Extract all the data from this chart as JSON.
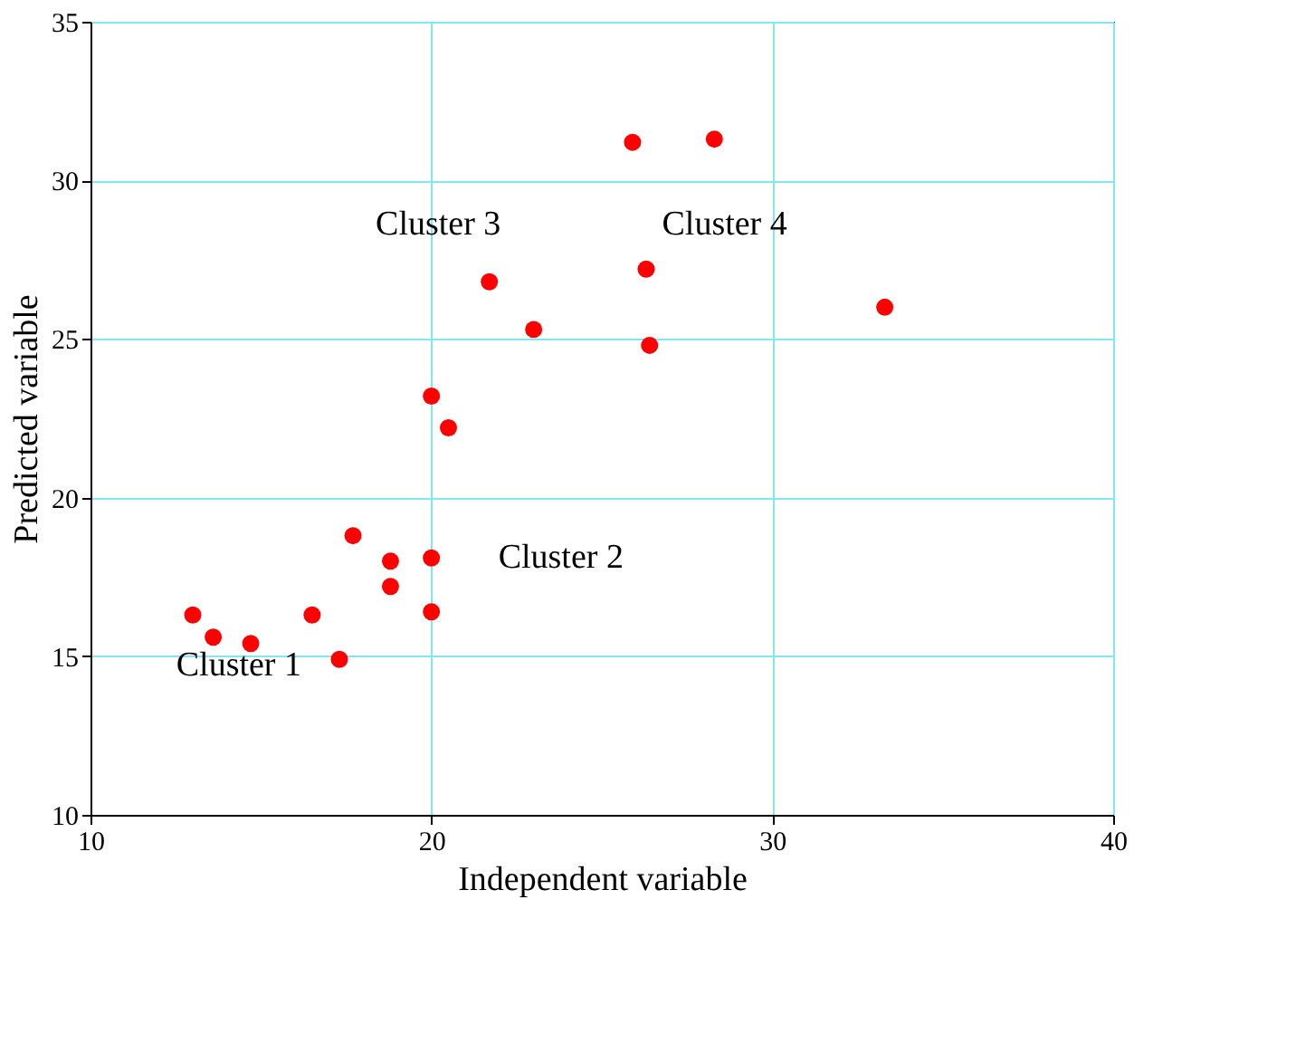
{
  "chart_data": {
    "type": "scatter",
    "xlabel": "Independent variable",
    "ylabel": "Predicted variable",
    "xlim": [
      10,
      40
    ],
    "xticks": [
      10,
      20,
      30,
      40
    ],
    "ylim": [
      10,
      35
    ],
    "yticks": [
      10,
      15,
      20,
      25,
      30,
      35
    ],
    "grid": true,
    "marker": "circle",
    "series": [
      {
        "color": "#ff0000",
        "x": [
          13.0,
          13.6,
          14.7,
          16.5,
          17.3,
          17.7,
          18.8,
          18.8,
          20.0,
          20.0,
          20.0,
          20.5,
          21.7,
          23.0,
          25.9,
          28.3,
          26.3,
          26.4,
          33.3
        ],
        "values": [
          16.3,
          15.6,
          15.4,
          16.3,
          14.9,
          18.8,
          18.0,
          17.2,
          18.1,
          16.4,
          23.2,
          22.2,
          26.8,
          25.3,
          31.2,
          31.3,
          27.2,
          24.8,
          26.0
        ]
      }
    ],
    "annotations": [
      "Cluster 1",
      "Cluster 2",
      "Cluster 3",
      "Cluster 4"
    ]
  }
}
